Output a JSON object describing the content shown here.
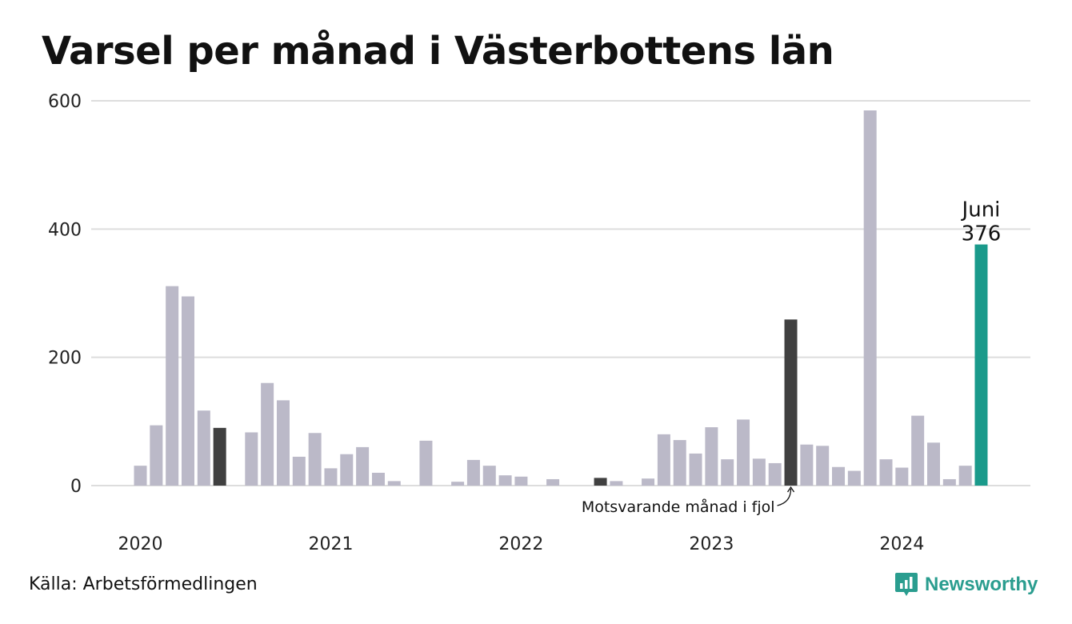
{
  "chart_data": {
    "type": "bar",
    "title": "Varsel per månad i Västerbottens län",
    "xlabel": "",
    "ylabel": "",
    "ylim": [
      0,
      600
    ],
    "yticks": [
      "0",
      "200",
      "400",
      "600"
    ],
    "xtick_labels": [
      "2020",
      "2021",
      "2022",
      "2023",
      "2024"
    ],
    "months": [
      "2020-01",
      "2020-02",
      "2020-03",
      "2020-04",
      "2020-05",
      "2020-06",
      "2020-07",
      "2020-08",
      "2020-09",
      "2020-10",
      "2020-11",
      "2020-12",
      "2021-01",
      "2021-02",
      "2021-03",
      "2021-04",
      "2021-05",
      "2021-06",
      "2021-07",
      "2021-08",
      "2021-09",
      "2021-10",
      "2021-11",
      "2021-12",
      "2022-01",
      "2022-02",
      "2022-03",
      "2022-04",
      "2022-05",
      "2022-06",
      "2022-07",
      "2022-08",
      "2022-09",
      "2022-10",
      "2022-11",
      "2022-12",
      "2023-01",
      "2023-02",
      "2023-03",
      "2023-04",
      "2023-05",
      "2023-06",
      "2023-07",
      "2023-08",
      "2023-09",
      "2023-10",
      "2023-11",
      "2023-12",
      "2024-01",
      "2024-02",
      "2024-03",
      "2024-04",
      "2024-05",
      "2024-06"
    ],
    "values": [
      31,
      94,
      311,
      295,
      117,
      90,
      0,
      83,
      160,
      133,
      45,
      82,
      27,
      49,
      60,
      20,
      7,
      0,
      70,
      0,
      6,
      40,
      31,
      16,
      14,
      0,
      10,
      0,
      0,
      12,
      7,
      0,
      11,
      80,
      71,
      50,
      91,
      41,
      103,
      42,
      35,
      259,
      64,
      62,
      29,
      23,
      585,
      41,
      28,
      109,
      67,
      10,
      31,
      376
    ],
    "highlight_month": "2024-06",
    "comparison_months": [
      "2020-06",
      "2021-06",
      "2022-06",
      "2023-06"
    ],
    "highlight_label": "Juni",
    "highlight_value_label": "376",
    "annotation": "Motsvarande månad i fjol",
    "colors": {
      "default": "#bbb9c8",
      "comparison": "#404040",
      "highlight": "#1a9a8b",
      "grid": "#dddddd"
    }
  },
  "source": "Källa: Arbetsförmedlingen",
  "brand": {
    "name": "Newsworthy",
    "icon": "newsworthy-logo-icon",
    "color": "#2a9d8f"
  }
}
